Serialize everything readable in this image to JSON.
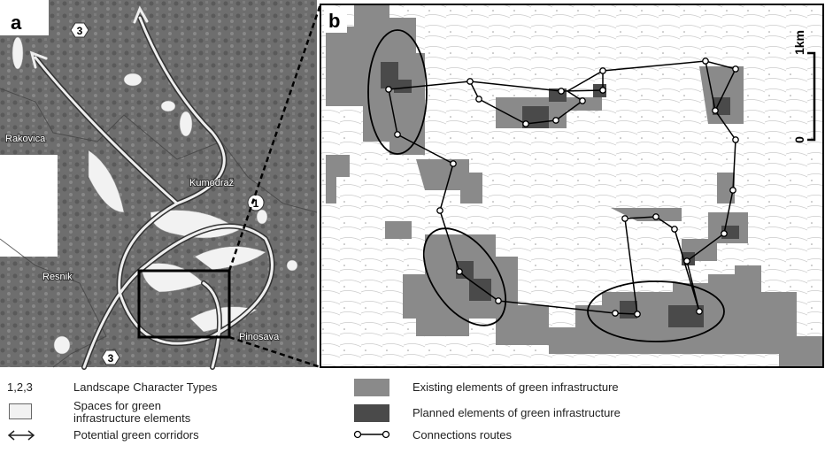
{
  "panel_a": {
    "label": "a",
    "places": [
      "Rakovica",
      "Kumodraž",
      "Resnik",
      "Pinosava"
    ],
    "type_markers": [
      "3",
      "1",
      "3"
    ]
  },
  "panel_b": {
    "label": "b",
    "scale_bar": {
      "top": "1km",
      "bottom": "0"
    }
  },
  "legend": {
    "left": [
      {
        "symbol": "1,2,3",
        "text": "Landscape Character Types"
      },
      {
        "text": "Spaces for green infrastructure elements"
      },
      {
        "text": "Potential green corridors"
      }
    ],
    "right": [
      {
        "text": "Existing elements of green infrastructure"
      },
      {
        "text": "Planned elements  of green infrastructure"
      },
      {
        "text": "Connections routes"
      }
    ]
  }
}
